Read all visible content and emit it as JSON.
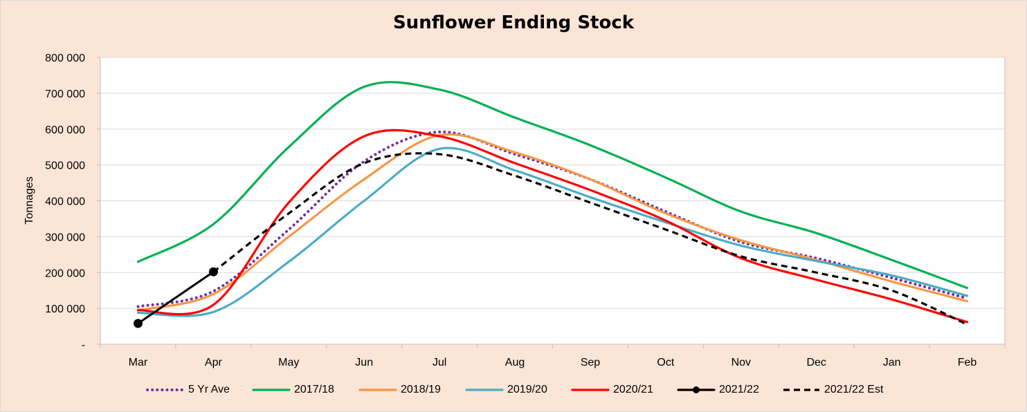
{
  "chart_data": {
    "type": "line",
    "title": "Sunflower Ending Stock",
    "ylabel": "Tonnages",
    "xlabel": "",
    "categories": [
      "Mar",
      "Apr",
      "May",
      "Jun",
      "Jul",
      "Aug",
      "Sep",
      "Oct",
      "Nov",
      "Dec",
      "Jan",
      "Feb"
    ],
    "yticks": [
      "-",
      "100 000",
      "200 000",
      "300 000",
      "400 000",
      "500 000",
      "600 000",
      "700 000",
      "800 000"
    ],
    "ylim": [
      0,
      800000
    ],
    "grid": true,
    "legend_position": "bottom",
    "series": [
      {
        "name": "5 Yr Ave",
        "color": "#7030a0",
        "style": "dotted",
        "values": [
          105000,
          148000,
          320000,
          510000,
          592000,
          530000,
          460000,
          370000,
          285000,
          240000,
          185000,
          128000
        ]
      },
      {
        "name": "2017/18",
        "color": "#00b050",
        "style": "solid",
        "values": [
          230000,
          335000,
          550000,
          718000,
          710000,
          632000,
          555000,
          465000,
          370000,
          310000,
          235000,
          157000
        ]
      },
      {
        "name": "2018/19",
        "color": "#f79646",
        "style": "solid",
        "values": [
          95000,
          140000,
          300000,
          460000,
          583000,
          535000,
          460000,
          365000,
          290000,
          235000,
          175000,
          120000
        ]
      },
      {
        "name": "2019/20",
        "color": "#4bacc6",
        "style": "solid",
        "values": [
          88000,
          90000,
          230000,
          400000,
          545000,
          485000,
          410000,
          340000,
          275000,
          232000,
          192000,
          135000
        ]
      },
      {
        "name": "2020/21",
        "color": "#ff0000",
        "style": "solid",
        "values": [
          95000,
          110000,
          395000,
          580000,
          580000,
          505000,
          430000,
          345000,
          240000,
          180000,
          125000,
          62000
        ]
      },
      {
        "name": "2021/22",
        "color": "#000000",
        "style": "marker",
        "values": [
          58000,
          202000,
          null,
          null,
          null,
          null,
          null,
          null,
          null,
          null,
          null,
          null
        ]
      },
      {
        "name": "2021/22 Est",
        "color": "#000000",
        "style": "dashed",
        "values": [
          null,
          202000,
          365000,
          505000,
          530000,
          470000,
          395000,
          320000,
          245000,
          200000,
          150000,
          55000
        ]
      }
    ]
  }
}
